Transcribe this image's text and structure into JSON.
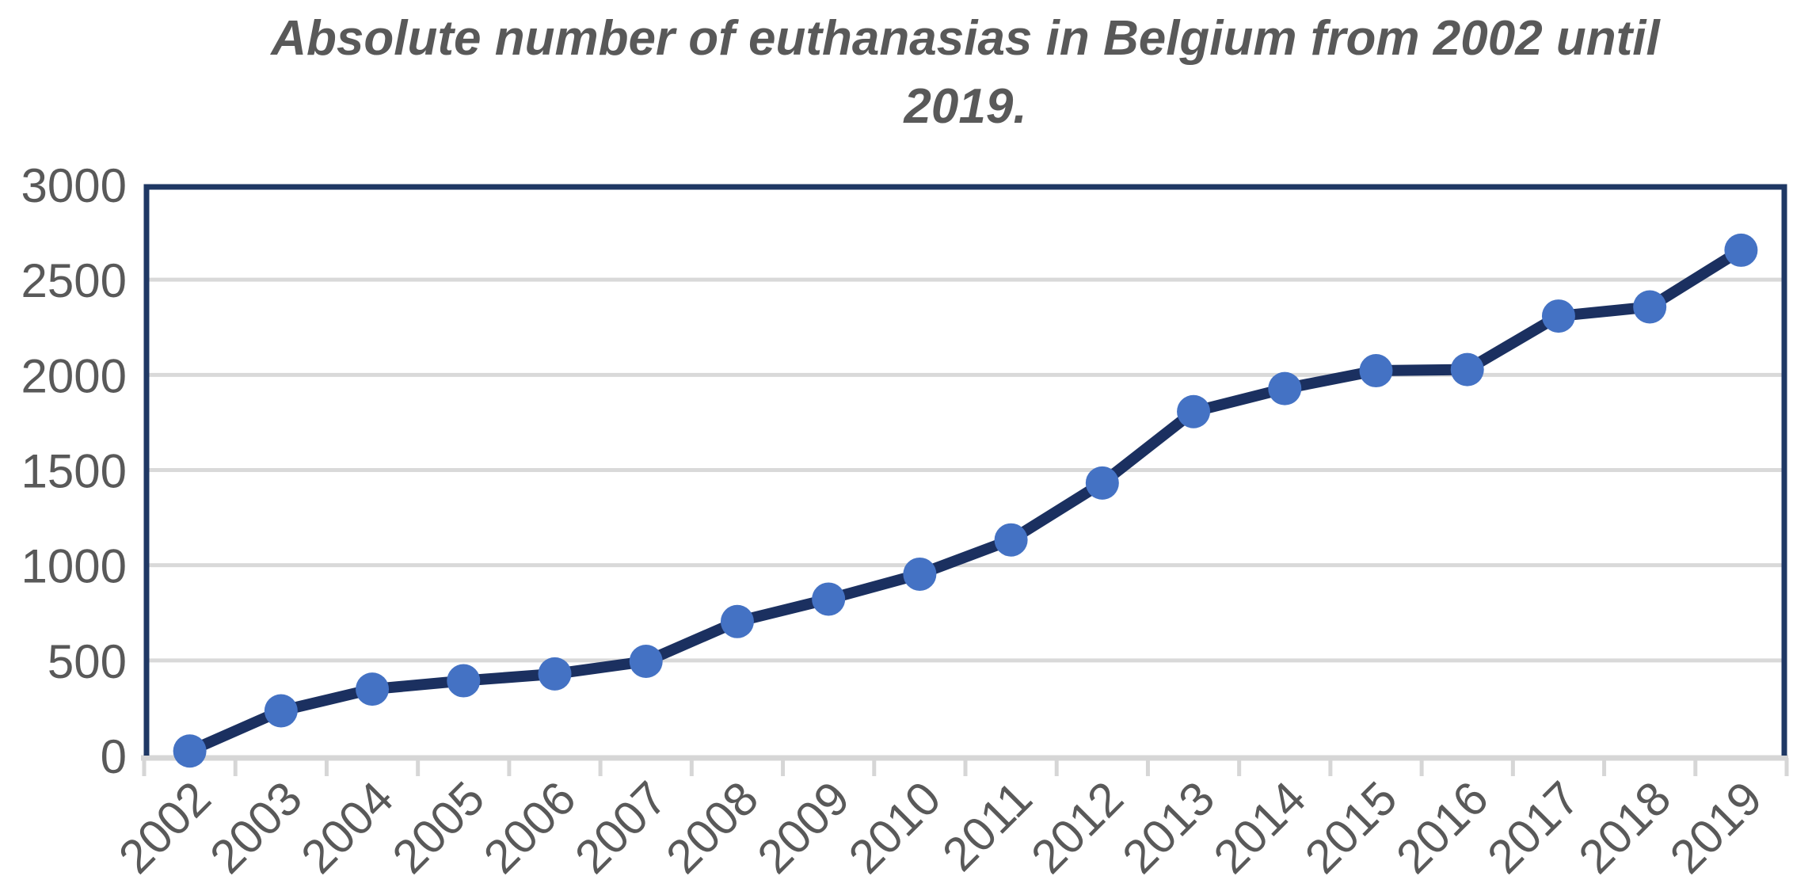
{
  "page": {
    "background_color": "#ffffff"
  },
  "title": {
    "text": "Absolute number of euthanasias in Belgium from 2002 until 2019.",
    "lines": [
      "Absolute number of euthanasias in Belgium from 2002 until",
      "2019."
    ],
    "color": "#595959"
  },
  "chart_data": {
    "type": "line",
    "title": "Absolute number of euthanasias in Belgium from 2002 until 2019.",
    "categories": [
      "2002",
      "2003",
      "2004",
      "2005",
      "2006",
      "2007",
      "2008",
      "2009",
      "2010",
      "2011",
      "2012",
      "2013",
      "2014",
      "2015",
      "2016",
      "2017",
      "2018",
      "2019"
    ],
    "values": [
      24,
      235,
      349,
      393,
      429,
      495,
      704,
      822,
      953,
      1133,
      1432,
      1807,
      1928,
      2022,
      2028,
      2309,
      2357,
      2655
    ],
    "xlabel": "",
    "ylabel": "",
    "ylim": [
      0,
      3000
    ],
    "y_ticks": [
      0,
      500,
      1000,
      1500,
      2000,
      2500,
      3000
    ],
    "grid": true,
    "legend": "none",
    "x_label_rotation_deg": -45,
    "styles": {
      "line_color": "#1b3060",
      "marker_color": "#4472C4",
      "plot_border_color": "#1F3864",
      "gridline_color": "#D9D9D9",
      "axis_line_color": "#D6D6D6",
      "tick_label_color": "#595959",
      "plot_background": "#ffffff"
    }
  }
}
